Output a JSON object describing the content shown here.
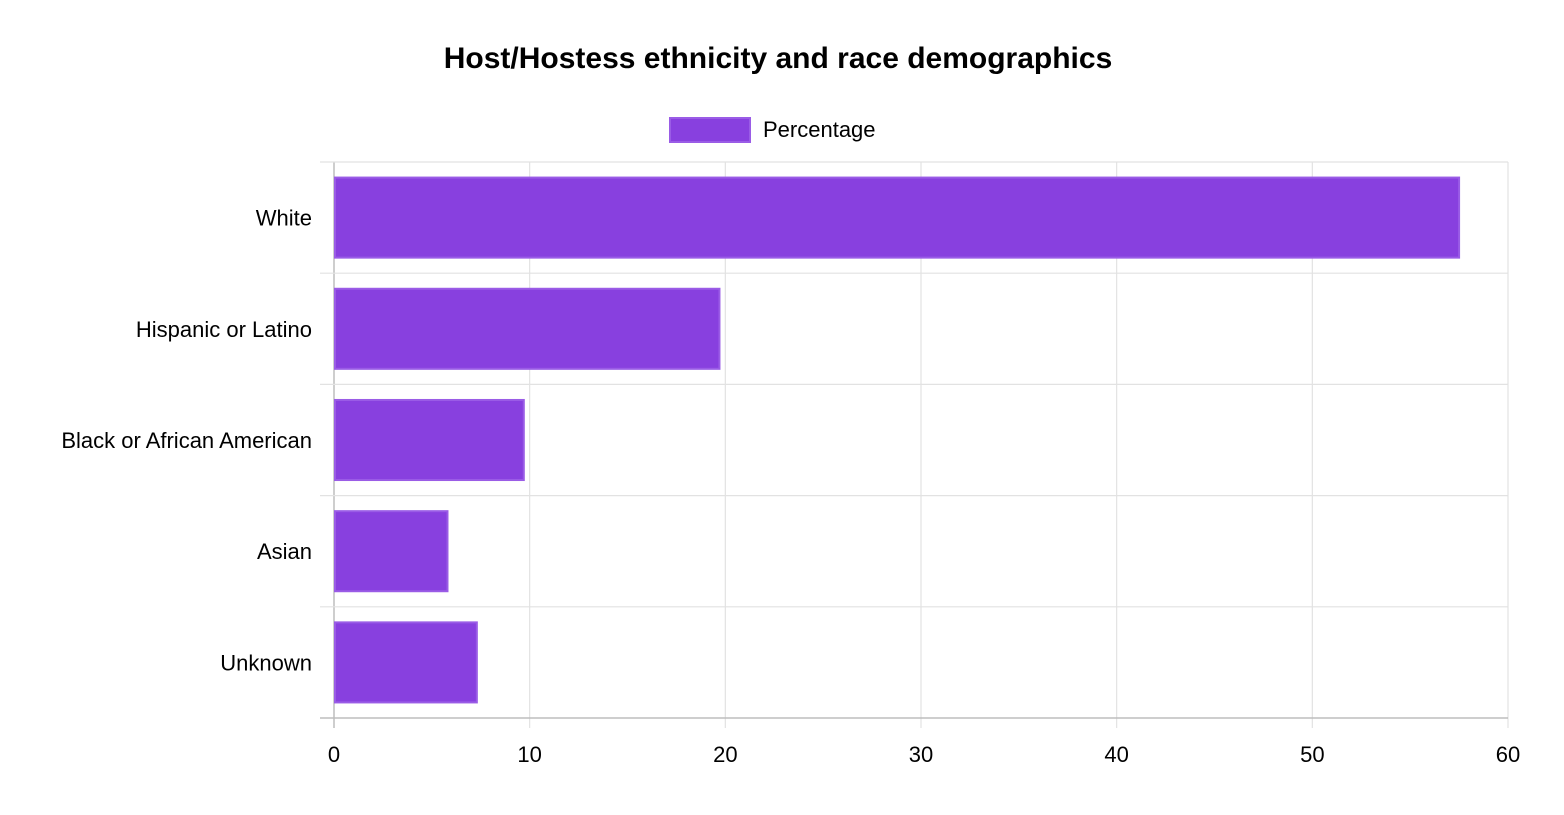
{
  "chart_data": {
    "type": "bar",
    "orientation": "horizontal",
    "title": "Host/Hostess ethnicity and race demographics",
    "categories": [
      "White",
      "Hispanic or Latino",
      "Black or African American",
      "Asian",
      "Unknown"
    ],
    "series": [
      {
        "name": "Percentage",
        "values": [
          57.5,
          19.7,
          9.7,
          5.8,
          7.3
        ],
        "color": "#8840df"
      }
    ],
    "xlim": [
      0,
      60
    ],
    "x_ticks": [
      0,
      10,
      20,
      30,
      40,
      50,
      60
    ],
    "xlabel": "",
    "ylabel": "",
    "grid": true,
    "legend_position": "top-center"
  }
}
